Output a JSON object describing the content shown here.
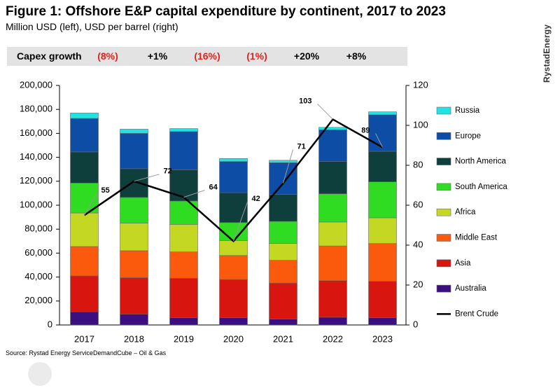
{
  "title": "Figure 1: Offshore E&P capital expenditure by continent, 2017 to 2023",
  "subtitle": "Million USD (left), USD per barrel (right)",
  "brand": "RystadEnergy",
  "capex_growth": {
    "label": "Capex growth",
    "values": [
      {
        "text": "(8%)",
        "negative": true
      },
      {
        "text": "+1%",
        "negative": false
      },
      {
        "text": "(16%)",
        "negative": true
      },
      {
        "text": "(1%)",
        "negative": true
      },
      {
        "text": "+20%",
        "negative": false
      },
      {
        "text": "+8%",
        "negative": false
      }
    ]
  },
  "source": "Source: Rystad Energy ServiceDemandCube – Oil & Gas",
  "colors": {
    "Australia": "#3c0f80",
    "Asia": "#d8160f",
    "Middle East": "#fb5a0c",
    "Africa": "#c4d722",
    "South America": "#2fdc22",
    "North America": "#0e3f3c",
    "Europe": "#0e4da6",
    "Russia": "#21e3e3",
    "Brent Crude": "#000000"
  },
  "chart_data": {
    "type": "stacked bar + line",
    "categories": [
      "2017",
      "2018",
      "2019",
      "2020",
      "2021",
      "2022",
      "2023"
    ],
    "left_axis": {
      "min": 0,
      "max": 200000,
      "ticks": [
        "0",
        "20,000",
        "40,000",
        "60,000",
        "80,000",
        "100,000",
        "120,000",
        "140,000",
        "160,000",
        "180,000",
        "200,000"
      ]
    },
    "right_axis": {
      "min": 0,
      "max": 120,
      "ticks": [
        "0",
        "20",
        "40",
        "60",
        "80",
        "100",
        "120"
      ]
    },
    "series": [
      {
        "name": "Australia",
        "values": [
          11000,
          9000,
          6000,
          6000,
          5000,
          6500,
          6000
        ]
      },
      {
        "name": "Asia",
        "values": [
          30000,
          30500,
          33000,
          32000,
          30000,
          30500,
          30500
        ]
      },
      {
        "name": "Middle East",
        "values": [
          24500,
          22500,
          22000,
          20000,
          19000,
          29000,
          31500
        ]
      },
      {
        "name": "Africa",
        "values": [
          28000,
          23000,
          23000,
          12500,
          14000,
          20000,
          21500
        ]
      },
      {
        "name": "South America",
        "values": [
          25000,
          21500,
          19500,
          15000,
          18500,
          23500,
          30000
        ]
      },
      {
        "name": "North America",
        "values": [
          26000,
          24000,
          26000,
          25000,
          22500,
          27000,
          25500
        ]
      },
      {
        "name": "Europe",
        "values": [
          28000,
          29500,
          32000,
          26000,
          26500,
          26500,
          30500
        ]
      },
      {
        "name": "Russia",
        "values": [
          4500,
          3500,
          2500,
          2500,
          2000,
          2000,
          2500
        ]
      }
    ],
    "line": {
      "name": "Brent Crude",
      "values": [
        55,
        72,
        64,
        42,
        71,
        103,
        89
      ]
    },
    "legend": [
      "Russia",
      "Europe",
      "North America",
      "South America",
      "Africa",
      "Middle East",
      "Asia",
      "Australia",
      "Brent Crude"
    ],
    "legend_position": "right",
    "grid": false
  }
}
